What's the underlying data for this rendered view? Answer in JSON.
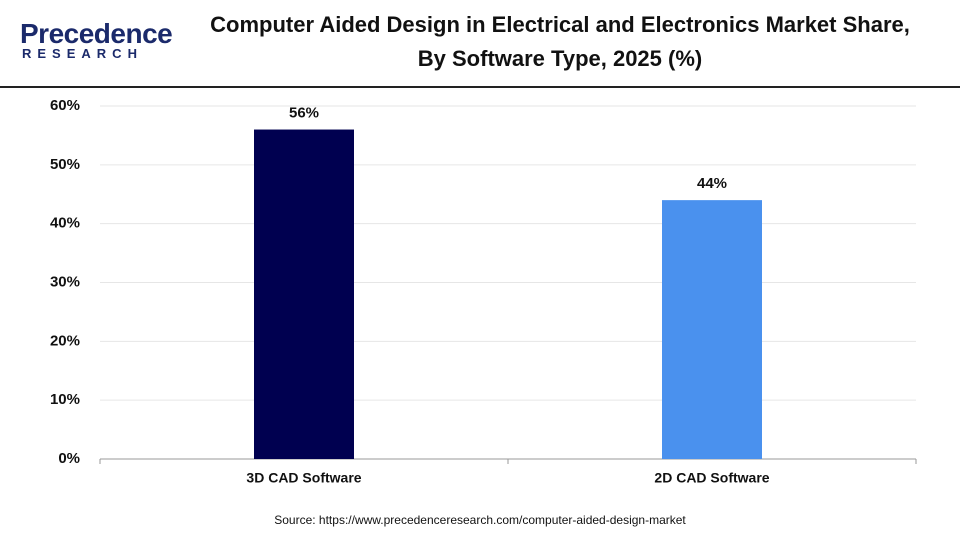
{
  "logo": {
    "name": "Precedence",
    "tagline": "RESEARCH"
  },
  "chart_data": {
    "type": "bar",
    "title": "Computer Aided Design in Electrical and Electronics Market Share, By Software Type, 2025 (%)",
    "categories": [
      "3D CAD Software",
      "2D CAD Software"
    ],
    "values": [
      56,
      44
    ],
    "value_labels": [
      "56%",
      "44%"
    ],
    "colors": [
      "#000050",
      "#4a91ee"
    ],
    "ylim": [
      0,
      60
    ],
    "yticks": [
      {
        "value": 0,
        "label": "0%"
      },
      {
        "value": 10,
        "label": "10%"
      },
      {
        "value": 20,
        "label": "20%"
      },
      {
        "value": 30,
        "label": "30%"
      },
      {
        "value": 40,
        "label": "40%"
      },
      {
        "value": 50,
        "label": "50%"
      },
      {
        "value": 60,
        "label": "60%"
      }
    ],
    "grid": true,
    "source": "Source: https://www.precedenceresearch.com/computer-aided-design-market"
  }
}
